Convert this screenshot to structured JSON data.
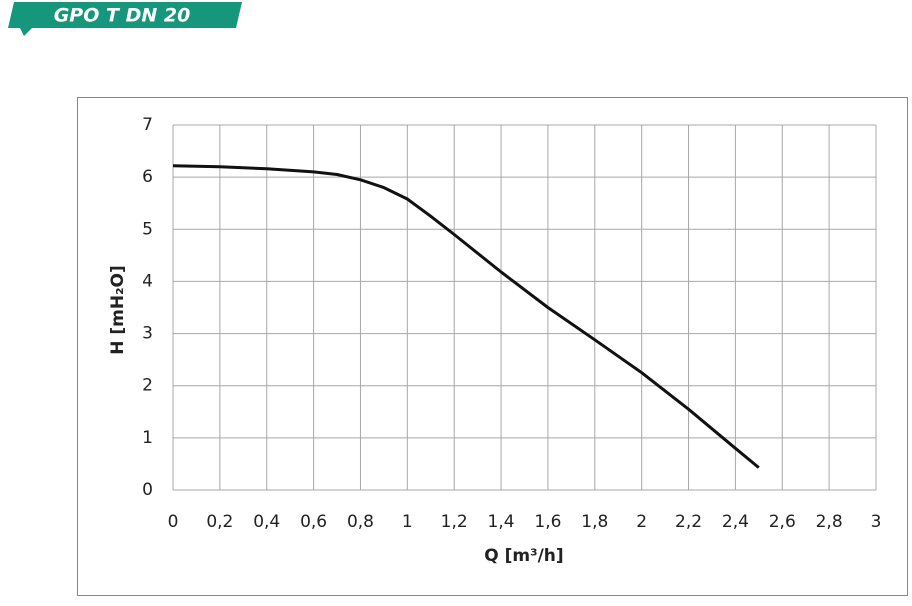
{
  "header": {
    "title": "GPO T DN 20"
  },
  "chart_data": {
    "type": "line",
    "x_label": "Q [m³/h]",
    "y_label": "H [mH₂O]",
    "x": [
      0,
      0.2,
      0.4,
      0.6,
      0.7,
      0.8,
      0.9,
      1,
      1.1,
      1.2,
      1.4,
      1.6,
      1.8,
      2,
      2.2,
      2.4,
      2.5
    ],
    "values": [
      6.22,
      6.2,
      6.16,
      6.1,
      6.05,
      5.95,
      5.8,
      5.58,
      5.25,
      4.9,
      4.18,
      3.5,
      2.88,
      2.25,
      1.55,
      0.8,
      0.43
    ],
    "color": "#111111",
    "xlim": [
      0,
      3
    ],
    "ylim": [
      0,
      7
    ],
    "xticks": [
      0,
      {
        "value": 0.2,
        "label": "0,2"
      },
      {
        "value": 0.4,
        "label": "0,4"
      },
      {
        "value": 0.6,
        "label": "0,6"
      },
      {
        "value": 0.8,
        "label": "0,8"
      },
      1,
      {
        "value": 1.2,
        "label": "1,2"
      },
      {
        "value": 1.4,
        "label": "1,4"
      },
      {
        "value": 1.6,
        "label": "1,6"
      },
      {
        "value": 1.8,
        "label": "1,8"
      },
      2,
      {
        "value": 2.2,
        "label": "2,2"
      },
      {
        "value": 2.4,
        "label": "2,4"
      },
      {
        "value": 2.6,
        "label": "2,6"
      },
      {
        "value": 2.8,
        "label": "2,8"
      },
      3
    ],
    "yticks": [
      0,
      1,
      2,
      3,
      4,
      5,
      6,
      7
    ],
    "grid": true
  }
}
